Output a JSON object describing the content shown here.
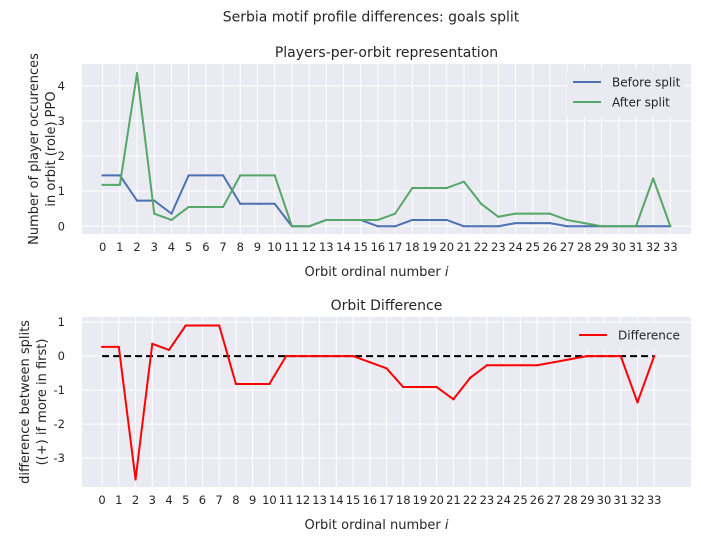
{
  "figure": {
    "suptitle": "Serbia motif profile differences: goals split"
  },
  "chart_data": [
    {
      "type": "line",
      "title": "Players-per-orbit representation",
      "xlabel": "Orbit ordinal number",
      "xlabel_var": "i",
      "ylabel_lines": [
        "Number of player occurences",
        "in orbit (role) PPO"
      ],
      "x": [
        0,
        1,
        2,
        3,
        4,
        5,
        6,
        7,
        8,
        9,
        10,
        11,
        12,
        13,
        14,
        15,
        16,
        17,
        18,
        19,
        20,
        21,
        22,
        23,
        24,
        25,
        26,
        27,
        28,
        29,
        30,
        31,
        32,
        33
      ],
      "xlim": [
        -1.2,
        34.2
      ],
      "ylim": [
        -0.22,
        4.62
      ],
      "yticks": [
        0,
        1,
        2,
        3,
        4
      ],
      "grid": true,
      "legend": "upper right",
      "series": [
        {
          "name": "Before split",
          "color": "#4c72b0",
          "values": [
            1.45,
            1.45,
            0.73,
            0.73,
            0.36,
            1.45,
            1.45,
            1.45,
            0.64,
            0.64,
            0.64,
            0,
            0,
            0.18,
            0.18,
            0.18,
            0,
            0,
            0.18,
            0.18,
            0.18,
            0,
            0,
            0,
            0.09,
            0.09,
            0.09,
            0,
            0,
            0,
            0,
            0,
            0,
            0
          ]
        },
        {
          "name": "After split",
          "color": "#55a868",
          "values": [
            1.18,
            1.18,
            4.36,
            0.36,
            0.18,
            0.55,
            0.55,
            0.55,
            1.45,
            1.45,
            1.45,
            0,
            0,
            0.18,
            0.18,
            0.18,
            0.18,
            0.36,
            1.09,
            1.09,
            1.09,
            1.27,
            0.64,
            0.27,
            0.36,
            0.36,
            0.36,
            0.18,
            0.09,
            0,
            0,
            0,
            1.36,
            0
          ]
        }
      ]
    },
    {
      "type": "line",
      "title": "Orbit Difference",
      "xlabel": "Orbit ordinal number",
      "xlabel_var": "i",
      "ylabel_lines": [
        "difference between splits",
        "((+) if more in first)"
      ],
      "x": [
        0,
        1,
        2,
        3,
        4,
        5,
        6,
        7,
        8,
        9,
        10,
        11,
        12,
        13,
        14,
        15,
        16,
        17,
        18,
        19,
        20,
        21,
        22,
        23,
        24,
        25,
        26,
        27,
        28,
        29,
        30,
        31,
        32,
        33
      ],
      "xlim": [
        -1.2,
        35.2
      ],
      "ylim": [
        -3.85,
        1.15
      ],
      "yticks": [
        -3,
        -2,
        -1,
        0,
        1
      ],
      "grid": true,
      "legend": "upper right",
      "reference_line": {
        "y": 0,
        "style": "dashed",
        "color": "#000000",
        "x_range": [
          0,
          33
        ]
      },
      "series": [
        {
          "name": "Difference",
          "color": "#ff0000",
          "values": [
            0.27,
            0.27,
            -3.63,
            0.36,
            0.18,
            0.9,
            0.9,
            0.9,
            -0.82,
            -0.82,
            -0.82,
            0,
            0,
            0,
            0,
            0,
            -0.18,
            -0.36,
            -0.91,
            -0.91,
            -0.91,
            -1.27,
            -0.64,
            -0.27,
            -0.27,
            -0.27,
            -0.27,
            -0.18,
            -0.09,
            0,
            0,
            0,
            -1.36,
            0
          ]
        }
      ]
    }
  ]
}
